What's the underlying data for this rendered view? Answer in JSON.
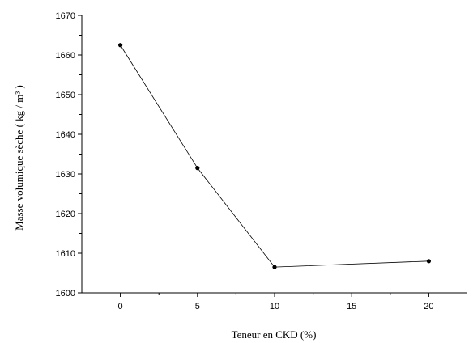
{
  "chart_data": {
    "type": "line",
    "xlabel": "Teneur en CKD (%)",
    "ylabel": "Masse  volumique sèche (  kg / m³ )",
    "xlim": [
      -2.5,
      22.5
    ],
    "ylim": [
      1600,
      1670
    ],
    "x_ticks": [
      0,
      5,
      10,
      15,
      20
    ],
    "y_ticks": [
      1600,
      1610,
      1620,
      1630,
      1640,
      1650,
      1660,
      1670
    ],
    "grid": false,
    "series": [
      {
        "x": [
          0,
          5,
          10,
          20
        ],
        "y": [
          1662.5,
          1631.5,
          1606.5,
          1608
        ]
      }
    ]
  }
}
